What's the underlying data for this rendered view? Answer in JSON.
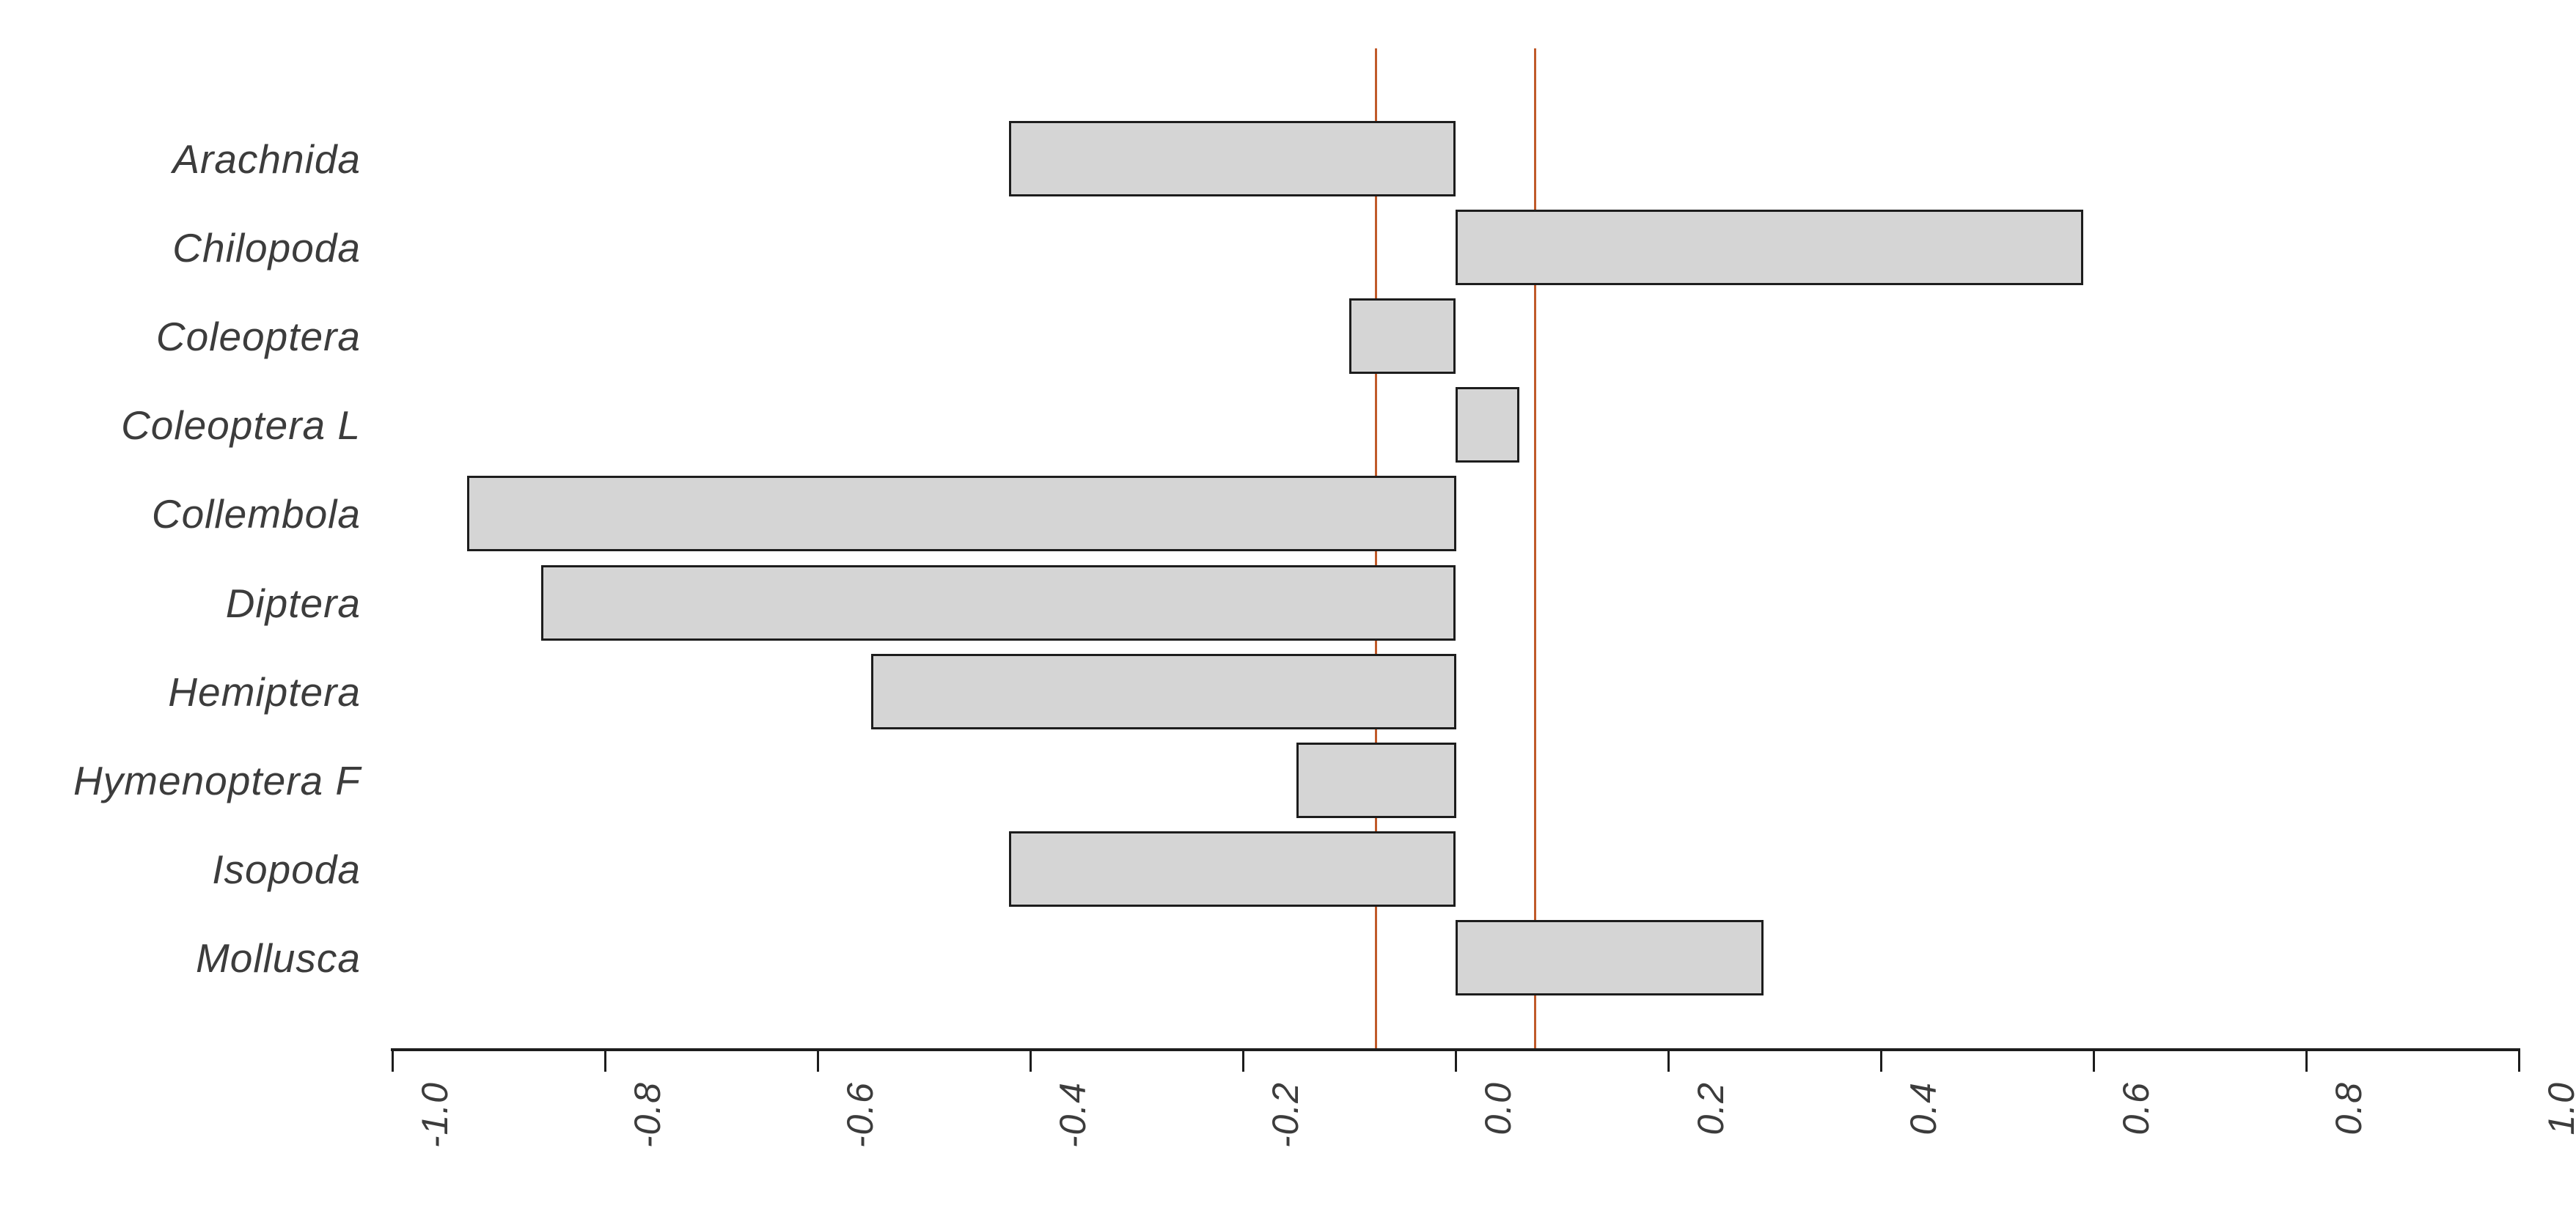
{
  "chart_data": {
    "type": "bar",
    "orientation": "horizontal",
    "title": "",
    "xlabel": "",
    "ylabel": "",
    "categories": [
      "Arachnida",
      "Chilopoda",
      "Coleoptera",
      "Coleoptera L",
      "Collembola",
      "Diptera",
      "Hemiptera",
      "Hymenoptera F",
      "Isopoda",
      "Mollusca"
    ],
    "values": [
      -0.42,
      0.59,
      -0.1,
      0.06,
      -0.93,
      -0.86,
      -0.55,
      -0.15,
      -0.42,
      0.29
    ],
    "xlim": [
      -1.0,
      1.0
    ],
    "x_tick_values": [
      -1.0,
      -0.8,
      -0.6,
      -0.4,
      -0.2,
      0.0,
      0.2,
      0.4,
      0.6,
      0.8,
      1.0
    ],
    "x_tick_labels": [
      "-1.0",
      "-0.8",
      "-0.6",
      "-0.4",
      "-0.2",
      "0.0",
      "0.2",
      "0.4",
      "0.6",
      "0.8",
      "1.0"
    ],
    "reference_lines": {
      "values": [
        -0.075,
        0.075
      ],
      "color": "#c05a2a"
    },
    "grid": false,
    "legend": null,
    "colors": {
      "bar_fill": "#d5d5d5",
      "bar_border": "#1d1d1d",
      "axis": "#1d1d1d",
      "text": "#3c3c3c"
    }
  }
}
